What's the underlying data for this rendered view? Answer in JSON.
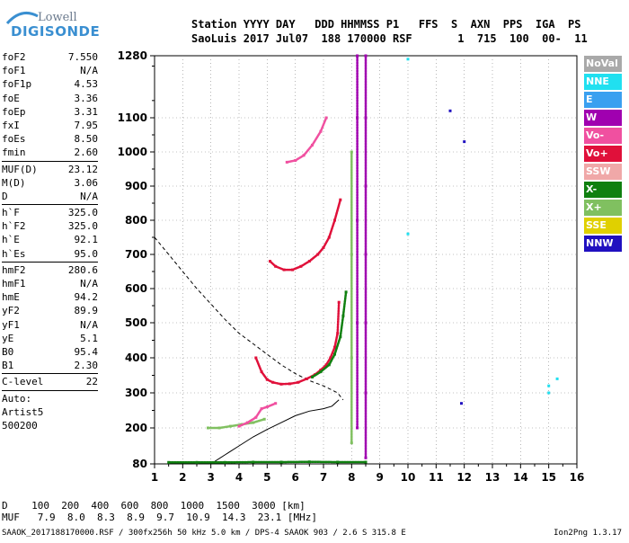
{
  "logo": {
    "line1": "Lowell",
    "line2": "DIGISONDE"
  },
  "header": {
    "line1": "Station YYYY DAY   DDD HHMMSS P1   FFS  S  AXN  PPS  IGA  PS",
    "line2": "SaoLuis 2017 Jul07  188 170000 RSF       1  715  100  00-  11"
  },
  "params": [
    {
      "name": "foF2",
      "value": "7.550"
    },
    {
      "name": "foF1",
      "value": "N/A"
    },
    {
      "name": "foF1p",
      "value": "4.53"
    },
    {
      "name": "foE",
      "value": "3.36"
    },
    {
      "name": "foEp",
      "value": "3.31"
    },
    {
      "name": "fxI",
      "value": "7.95"
    },
    {
      "name": "foEs",
      "value": "8.50"
    },
    {
      "name": "fmin",
      "value": "2.60"
    },
    {
      "sep": true
    },
    {
      "name": "MUF(D)",
      "value": "23.12"
    },
    {
      "name": "M(D)",
      "value": "3.06"
    },
    {
      "name": "D",
      "value": "N/A"
    },
    {
      "sep": true
    },
    {
      "name": "h`F",
      "value": "325.0"
    },
    {
      "name": "h`F2",
      "value": "325.0"
    },
    {
      "name": "h`E",
      "value": "92.1"
    },
    {
      "name": "h`Es",
      "value": "95.0"
    },
    {
      "sep": true
    },
    {
      "name": "hmF2",
      "value": "280.6"
    },
    {
      "name": "hmF1",
      "value": "N/A"
    },
    {
      "name": "hmE",
      "value": "94.2"
    },
    {
      "name": "yF2",
      "value": "89.9"
    },
    {
      "name": "yF1",
      "value": "N/A"
    },
    {
      "name": "yE",
      "value": "5.1"
    },
    {
      "name": "B0",
      "value": "95.4"
    },
    {
      "name": "B1",
      "value": "2.30"
    },
    {
      "sep": true
    },
    {
      "name": "C-level",
      "value": "22"
    },
    {
      "sep": true
    },
    {
      "text": "Auto:"
    },
    {
      "text": "Artist5"
    },
    {
      "text": "500200"
    }
  ],
  "legend": [
    {
      "label": "NoVal",
      "color": "#a9a9a9"
    },
    {
      "label": "NNE",
      "color": "#20e0f0"
    },
    {
      "label": "E",
      "color": "#3aa0f0"
    },
    {
      "label": "W",
      "color": "#a000b0"
    },
    {
      "label": "Vo-",
      "color": "#f050a0"
    },
    {
      "label": "Vo+",
      "color": "#e0103a"
    },
    {
      "label": "SSW",
      "color": "#f0a8a8"
    },
    {
      "label": "X-",
      "color": "#108010"
    },
    {
      "label": "X+",
      "color": "#80c060"
    },
    {
      "label": "SSE",
      "color": "#e0d000"
    },
    {
      "label": "NNW",
      "color": "#2010c0"
    }
  ],
  "dtable": {
    "row1": "D    100  200  400  600  800  1000  1500  3000 [km]",
    "row2": "MUF   7.9  8.0  8.3  8.9  9.7  10.9  14.3  23.1 [MHz]"
  },
  "footer": "SAAOK_2017188170000.RSF / 300fx256h 50 kHz 5.0 km / DPS-4 SAAOK 903 / 2.6 S 315.8 E",
  "version": "Ion2Png 1.3.17",
  "chart_data": {
    "type": "scatter",
    "title": "",
    "xlabel": "",
    "ylabel": "",
    "xlim": [
      1,
      16
    ],
    "ylim": [
      80,
      1280
    ],
    "x_ticks": [
      1,
      2,
      3,
      4,
      5,
      6,
      7,
      8,
      9,
      10,
      11,
      12,
      13,
      14,
      15,
      16
    ],
    "y_ticks": [
      80,
      200,
      300,
      400,
      500,
      600,
      700,
      800,
      900,
      1000,
      1100,
      1280
    ],
    "y_scale": "virtual height km (compressed near bottom)",
    "grid": true,
    "series": [
      {
        "name": "Vo+",
        "color": "#e0103a",
        "kind": "trace",
        "x": [
          4.6,
          4.8,
          5.0,
          5.2,
          5.5,
          5.8,
          6.1,
          6.4,
          6.7,
          6.9,
          7.1,
          7.25,
          7.4,
          7.5,
          7.55
        ],
        "y": [
          400,
          360,
          338,
          330,
          325,
          326,
          330,
          340,
          352,
          365,
          380,
          400,
          430,
          470,
          560
        ]
      },
      {
        "name": "X-",
        "color": "#108010",
        "kind": "trace",
        "x": [
          6.6,
          6.9,
          7.2,
          7.4,
          7.6,
          7.7,
          7.8
        ],
        "y": [
          345,
          360,
          380,
          410,
          460,
          520,
          590
        ]
      },
      {
        "name": "Vo+",
        "color": "#e0103a",
        "kind": "trace",
        "x": [
          5.1,
          5.3,
          5.6,
          5.9,
          6.2,
          6.5,
          6.8,
          7.0,
          7.2,
          7.4,
          7.6
        ],
        "y": [
          680,
          665,
          655,
          655,
          665,
          680,
          700,
          720,
          750,
          800,
          860
        ]
      },
      {
        "name": "Vo-",
        "color": "#f050a0",
        "kind": "trace",
        "x": [
          5.7,
          6.0,
          6.3,
          6.6,
          6.9,
          7.1
        ],
        "y": [
          970,
          975,
          990,
          1020,
          1060,
          1100
        ]
      },
      {
        "name": "X+",
        "color": "#80c060",
        "kind": "trace",
        "x": [
          2.9,
          3.3,
          3.7,
          4.1,
          4.5,
          4.9
        ],
        "y": [
          200,
          200,
          205,
          210,
          215,
          225
        ]
      },
      {
        "name": "Vo-",
        "color": "#f050a0",
        "kind": "trace",
        "x": [
          4.0,
          4.3,
          4.6,
          4.8,
          5.0,
          5.3
        ],
        "y": [
          205,
          215,
          230,
          255,
          260,
          270
        ]
      },
      {
        "name": "X-",
        "color": "#108010",
        "kind": "trace",
        "x": [
          1.5,
          2.5,
          3.5,
          4.5,
          5.5,
          6.5,
          7.5,
          8.5
        ],
        "y": [
          85,
          85,
          85,
          86,
          86,
          87,
          86,
          86
        ]
      },
      {
        "name": "W",
        "color": "#a000b0",
        "kind": "trace",
        "x": [
          8.5,
          8.5,
          8.5,
          8.5,
          8.5,
          8.5,
          8.5
        ],
        "y": [
          100,
          300,
          500,
          700,
          900,
          1100,
          1280
        ]
      },
      {
        "name": "W",
        "color": "#a000b0",
        "kind": "trace",
        "x": [
          8.2,
          8.2,
          8.2,
          8.2,
          8.2
        ],
        "y": [
          200,
          500,
          800,
          1100,
          1280
        ]
      },
      {
        "name": "X+",
        "color": "#80c060",
        "kind": "trace",
        "x": [
          8.0,
          8.0,
          8.0,
          8.0
        ],
        "y": [
          150,
          400,
          700,
          1000
        ]
      },
      {
        "name": "NNE",
        "color": "#20e0f0",
        "kind": "points",
        "x": [
          10.0,
          10.0,
          15.0,
          15.0,
          15.3
        ],
        "y": [
          760,
          1270,
          320,
          300,
          340
        ]
      },
      {
        "name": "NNW",
        "color": "#2010c0",
        "kind": "points",
        "x": [
          12.0,
          11.5,
          11.9
        ],
        "y": [
          1030,
          1120,
          270
        ]
      }
    ],
    "profile_dashed": {
      "x": [
        1.0,
        1.5,
        2.0,
        2.5,
        3.0,
        3.5,
        4.0,
        4.5,
        5.0,
        5.5,
        6.0,
        6.5,
        7.0,
        7.5,
        7.7
      ],
      "y": [
        750,
        700,
        650,
        600,
        555,
        510,
        470,
        440,
        410,
        380,
        355,
        335,
        320,
        300,
        280
      ]
    },
    "profile_solid": {
      "x": [
        3.0,
        3.5,
        4.0,
        4.5,
        5.0,
        5.5,
        6.0,
        6.5,
        7.0,
        7.3,
        7.55
      ],
      "y": [
        80,
        110,
        140,
        170,
        195,
        215,
        235,
        248,
        255,
        262,
        280
      ]
    }
  }
}
